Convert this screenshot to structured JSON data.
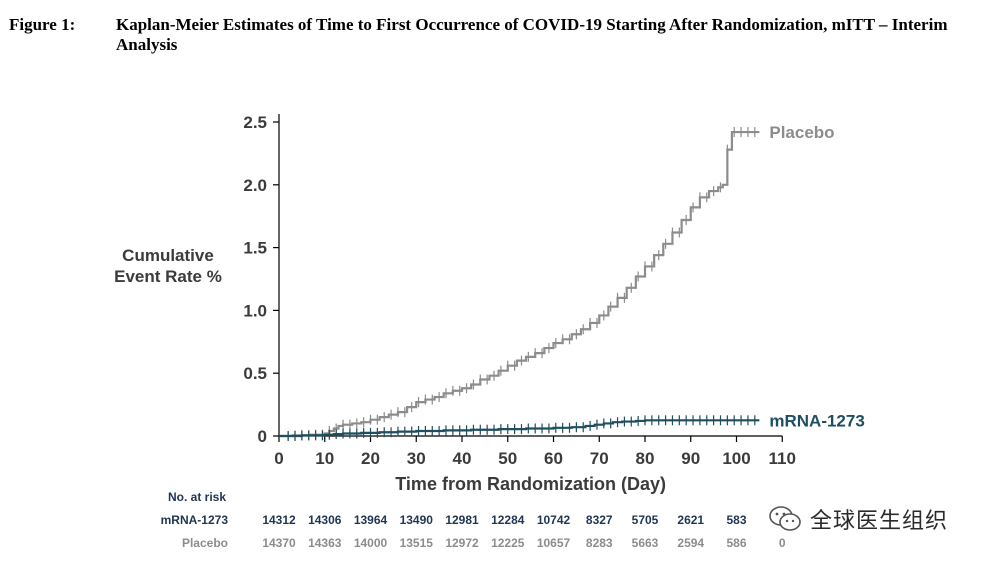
{
  "figure": {
    "label": "Figure 1:",
    "title": "Kaplan-Meier Estimates of Time to First Occurrence of COVID-19 Starting After Randomization, mITT – Interim Analysis"
  },
  "watermark": {
    "text": "全球医生组织",
    "icon": "wechat-icon"
  },
  "chart_data": {
    "type": "line",
    "title": "",
    "xlabel": "Time from Randomization (Day)",
    "ylabel": "Cumulative Event Rate %",
    "xlim": [
      0,
      110
    ],
    "ylim": [
      0,
      2.5
    ],
    "x_ticks": [
      0,
      10,
      20,
      30,
      40,
      50,
      60,
      70,
      80,
      90,
      100,
      110
    ],
    "y_ticks": [
      0,
      0.5,
      1.0,
      1.5,
      2.0,
      2.5
    ],
    "y_tick_labels": [
      "0",
      "0.5",
      "1.0",
      "1.5",
      "2.0",
      "2.5"
    ],
    "grid": false,
    "series": [
      {
        "name": "Placebo",
        "color": "#8c8c8c",
        "x": [
          0,
          3,
          7,
          10,
          11,
          12,
          13,
          14,
          16,
          18,
          20,
          22,
          24,
          26,
          28,
          30,
          32,
          34,
          36,
          38,
          40,
          42,
          44,
          46,
          48,
          50,
          52,
          54,
          56,
          58,
          60,
          62,
          64,
          66,
          68,
          70,
          72,
          74,
          76,
          78,
          80,
          82,
          84,
          86,
          88,
          90,
          92,
          94,
          96,
          97,
          98,
          99,
          105
        ],
        "y": [
          0,
          0.005,
          0.01,
          0.02,
          0.04,
          0.06,
          0.08,
          0.09,
          0.1,
          0.11,
          0.13,
          0.15,
          0.17,
          0.19,
          0.23,
          0.27,
          0.29,
          0.31,
          0.34,
          0.36,
          0.38,
          0.41,
          0.45,
          0.48,
          0.52,
          0.56,
          0.6,
          0.63,
          0.66,
          0.7,
          0.74,
          0.77,
          0.81,
          0.85,
          0.9,
          0.96,
          1.03,
          1.1,
          1.18,
          1.27,
          1.35,
          1.44,
          1.53,
          1.62,
          1.72,
          1.82,
          1.9,
          1.95,
          1.98,
          2.0,
          2.28,
          2.42,
          2.42
        ]
      },
      {
        "name": "mRNA-1273",
        "color": "#1f4e5f",
        "x": [
          0,
          5,
          10,
          12,
          14,
          18,
          22,
          26,
          30,
          36,
          42,
          48,
          54,
          60,
          64,
          67,
          69,
          71,
          73,
          75,
          78,
          80,
          85,
          90,
          95,
          100,
          105
        ],
        "y": [
          0,
          0.005,
          0.01,
          0.015,
          0.02,
          0.025,
          0.03,
          0.035,
          0.04,
          0.045,
          0.05,
          0.055,
          0.06,
          0.065,
          0.07,
          0.08,
          0.09,
          0.1,
          0.11,
          0.115,
          0.12,
          0.125,
          0.125,
          0.125,
          0.125,
          0.125,
          0.125
        ]
      }
    ],
    "legend": "line-end labels",
    "risk_table": {
      "header": "No. at risk",
      "rows": [
        {
          "label": "mRNA-1273",
          "values": [
            "14312",
            "14306",
            "13964",
            "13490",
            "12981",
            "12284",
            "10742",
            "8327",
            "5705",
            "2621",
            "583",
            ""
          ]
        },
        {
          "label": "Placebo",
          "values": [
            "14370",
            "14363",
            "14000",
            "13515",
            "12972",
            "12225",
            "10657",
            "8283",
            "5663",
            "2594",
            "586",
            "0"
          ]
        }
      ]
    }
  }
}
